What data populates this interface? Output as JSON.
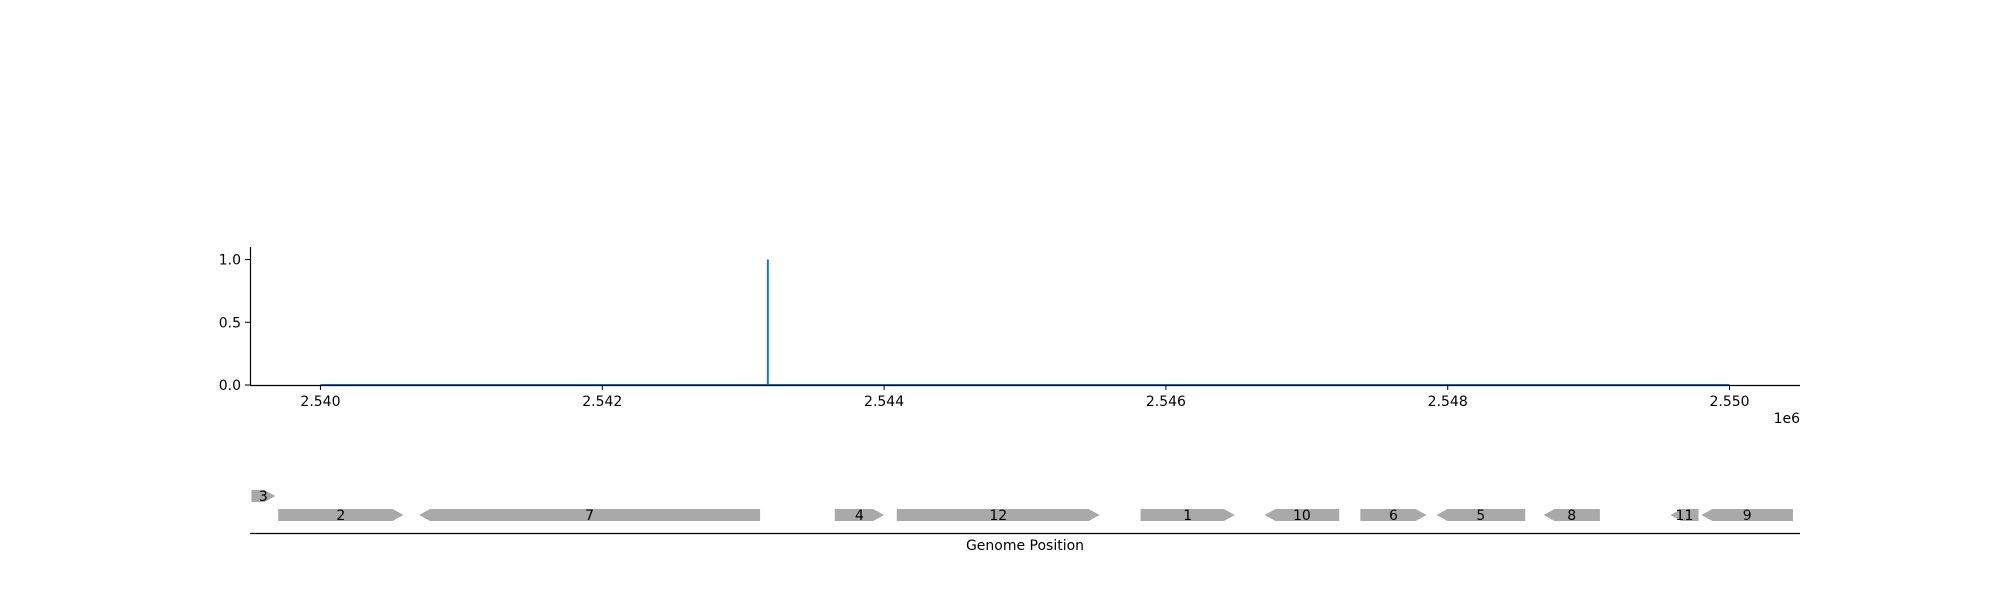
{
  "chart_data": [
    {
      "type": "line",
      "title": "",
      "xlabel": "",
      "ylabel": "",
      "x_offset_label": "1e6",
      "xlim": [
        2539500,
        2550500
      ],
      "ylim": [
        0,
        1.1
      ],
      "xticks": [
        2540000,
        2542000,
        2544000,
        2546000,
        2548000,
        2550000
      ],
      "xtick_labels": [
        "2.540",
        "2.542",
        "2.544",
        "2.546",
        "2.548",
        "2.550"
      ],
      "yticks": [
        0,
        0.5,
        1
      ],
      "ytick_labels": [
        "0.0",
        "0.5",
        "1.0"
      ],
      "grid": false,
      "colors": {
        "line": "#1f77b4"
      },
      "series": [
        {
          "x": [
            2540000,
            2543175,
            2543175,
            2543175,
            2550000
          ],
          "values": [
            0,
            0,
            1.0,
            0,
            0
          ]
        }
      ]
    },
    {
      "type": "gene-track",
      "xlabel": "Genome Position",
      "xlim": [
        2539500,
        2550500
      ],
      "colors": {
        "feature": "#a9a9a9"
      },
      "features": [
        {
          "label": "3",
          "start": 2539510,
          "end": 2539680,
          "strand": 1,
          "row": 1
        },
        {
          "label": "2",
          "start": 2539700,
          "end": 2540590,
          "strand": 1,
          "row": 0
        },
        {
          "label": "7",
          "start": 2540700,
          "end": 2543120,
          "strand": -1,
          "row": 0
        },
        {
          "label": "4",
          "start": 2543650,
          "end": 2544000,
          "strand": 1,
          "row": 0
        },
        {
          "label": "12",
          "start": 2544090,
          "end": 2545530,
          "strand": 1,
          "row": 0
        },
        {
          "label": "1",
          "start": 2545820,
          "end": 2546490,
          "strand": 1,
          "row": 0
        },
        {
          "label": "10",
          "start": 2546700,
          "end": 2547230,
          "strand": -1,
          "row": 0
        },
        {
          "label": "6",
          "start": 2547380,
          "end": 2547850,
          "strand": 1,
          "row": 0
        },
        {
          "label": "5",
          "start": 2547920,
          "end": 2548550,
          "strand": -1,
          "row": 0
        },
        {
          "label": "8",
          "start": 2548680,
          "end": 2549080,
          "strand": -1,
          "row": 0
        },
        {
          "label": "11",
          "start": 2549580,
          "end": 2549780,
          "strand": -1,
          "row": 0
        },
        {
          "label": "9",
          "start": 2549800,
          "end": 2550450,
          "strand": -1,
          "row": 0
        }
      ]
    }
  ]
}
